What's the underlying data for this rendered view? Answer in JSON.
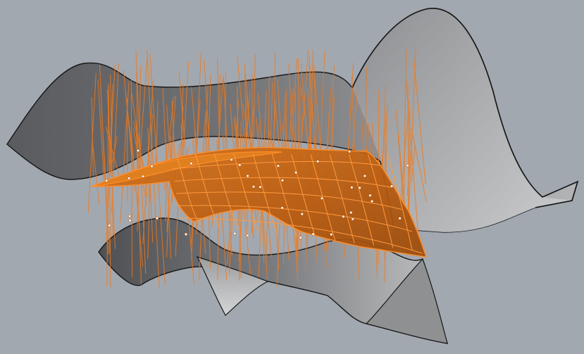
{
  "scene": {
    "kind": "3d-surface-viewport",
    "background_color": "#a2a8b0",
    "surface_colors": {
      "upper_dark": "#58595c",
      "upper_mid": "#86878a",
      "upper_light": "#a9aaac",
      "lower_dark": "#5a5b5e",
      "lower_light": "#b8b9bb",
      "edge": "#161616"
    },
    "selection_colors": {
      "patch_fill": "#c06210",
      "patch_fill_light": "#e07f1f",
      "projection_line": "#f07a1c",
      "control_point": "#ffffff"
    },
    "objects": [
      {
        "name": "upper-surface",
        "selected": false
      },
      {
        "name": "lower-surface",
        "selected": false
      },
      {
        "name": "projected-patch",
        "selected": true
      }
    ]
  }
}
